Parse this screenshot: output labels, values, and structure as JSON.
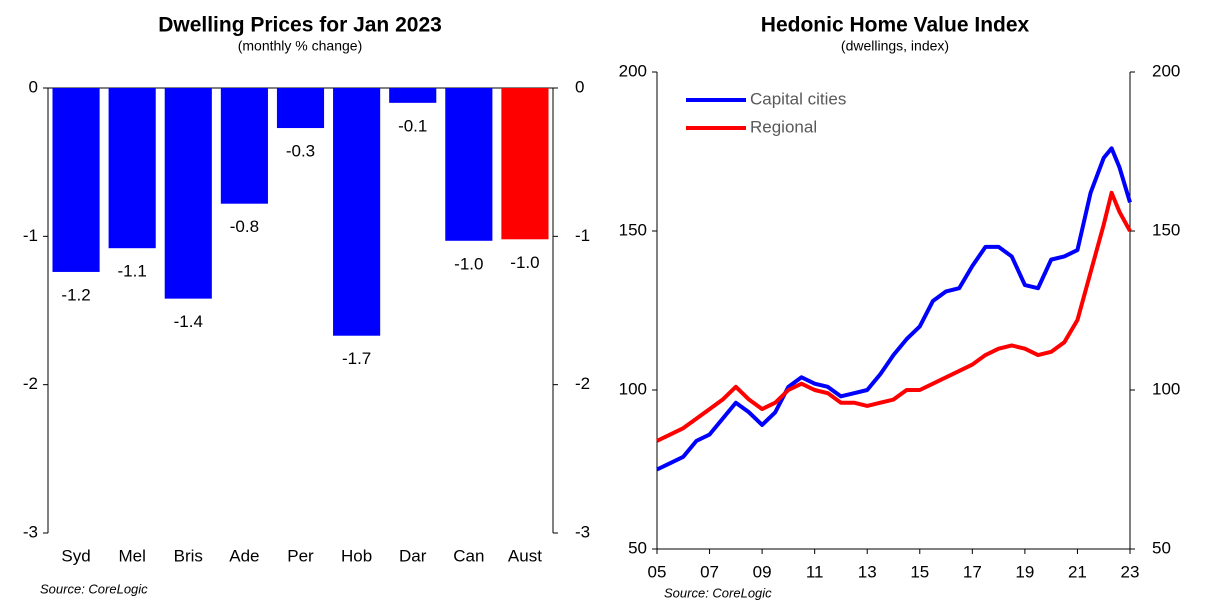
{
  "chart_data": [
    {
      "type": "bar",
      "title": "Dwelling Prices for Jan 2023",
      "subtitle": "(monthly % change)",
      "categories": [
        "Syd",
        "Mel",
        "Bris",
        "Ade",
        "Per",
        "Hob",
        "Dar",
        "Can",
        "Aust"
      ],
      "values": [
        -1.24,
        -1.08,
        -1.42,
        -0.78,
        -0.27,
        -1.67,
        -0.1,
        -1.03,
        -1.02
      ],
      "value_labels": [
        "-1.2",
        "-1.1",
        "-1.4",
        "-0.8",
        "-0.3",
        "-1.7",
        "-0.1",
        "-1.0",
        "-1.0"
      ],
      "colors": [
        "#0000ff",
        "#0000ff",
        "#0000ff",
        "#0000ff",
        "#0000ff",
        "#0000ff",
        "#0000ff",
        "#0000ff",
        "#ff0000"
      ],
      "ylim": [
        -3,
        0
      ],
      "yticks": [
        0,
        -1,
        -2,
        -3
      ],
      "y2lim": [
        -3,
        0
      ],
      "y2ticks": [
        0,
        -1,
        -2,
        -3
      ],
      "source": "Source: CoreLogic"
    },
    {
      "type": "line",
      "title": "Hedonic Home Value Index",
      "subtitle": "(dwellings, index)",
      "x": [
        2005,
        2005.5,
        2006,
        2006.5,
        2007,
        2007.5,
        2008,
        2008.5,
        2009,
        2009.5,
        2010,
        2010.5,
        2011,
        2011.5,
        2012,
        2012.5,
        2013,
        2013.5,
        2014,
        2014.5,
        2015,
        2015.5,
        2016,
        2016.5,
        2017,
        2017.5,
        2018,
        2018.5,
        2019,
        2019.5,
        2020,
        2020.5,
        2021,
        2021.5,
        2022,
        2022.3,
        2022.6,
        2023
      ],
      "series": [
        {
          "name": "Capital cities",
          "color": "#0000ff",
          "values": [
            75,
            77,
            79,
            84,
            86,
            91,
            96,
            93,
            89,
            93,
            101,
            104,
            102,
            101,
            98,
            99,
            100,
            105,
            111,
            116,
            120,
            128,
            131,
            132,
            139,
            145,
            145,
            142,
            133,
            132,
            141,
            142,
            144,
            162,
            173,
            176,
            170,
            159
          ]
        },
        {
          "name": "Regional",
          "color": "#ff0000",
          "values": [
            84,
            86,
            88,
            91,
            94,
            97,
            101,
            97,
            94,
            96,
            100,
            102,
            100,
            99,
            96,
            96,
            95,
            96,
            97,
            100,
            100,
            102,
            104,
            106,
            108,
            111,
            113,
            114,
            113,
            111,
            112,
            115,
            122,
            137,
            152,
            162,
            156,
            150
          ]
        }
      ],
      "xlim": [
        2005,
        2023
      ],
      "xticks": [
        {
          "value": 2005,
          "label": "05"
        },
        {
          "value": 2007,
          "label": "07"
        },
        {
          "value": 2009,
          "label": "09"
        },
        {
          "value": 2011,
          "label": "11"
        },
        {
          "value": 2013,
          "label": "13"
        },
        {
          "value": 2015,
          "label": "15"
        },
        {
          "value": 2017,
          "label": "17"
        },
        {
          "value": 2019,
          "label": "19"
        },
        {
          "value": 2021,
          "label": "21"
        },
        {
          "value": 2023,
          "label": "23"
        }
      ],
      "ylim": [
        50,
        200
      ],
      "yticks": [
        50,
        100,
        150,
        200
      ],
      "y2lim": [
        50,
        200
      ],
      "y2ticks": [
        50,
        100,
        150,
        200
      ],
      "legend": "upper-left",
      "source": "Source: CoreLogic"
    }
  ]
}
